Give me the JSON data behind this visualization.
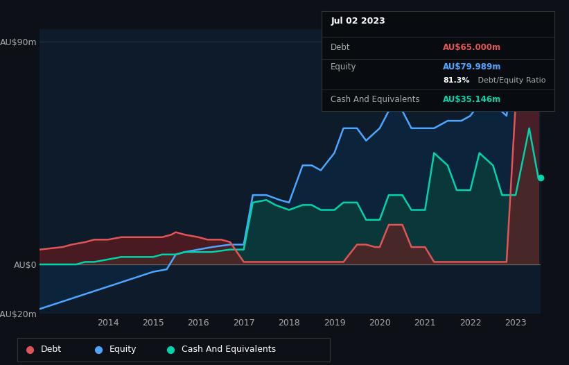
{
  "background_color": "#0d1117",
  "plot_bg_color": "#0d1b2a",
  "grid_color": "#2a3a4a",
  "ylabel_top": "AU$90m",
  "ylabel_zero": "AU$0",
  "ylabel_neg": "-AU$20m",
  "ylim": [
    -20,
    95
  ],
  "xtick_labels": [
    "2014",
    "2015",
    "2016",
    "2017",
    "2018",
    "2019",
    "2020",
    "2021",
    "2022",
    "2023"
  ],
  "debt_color": "#e05555",
  "equity_color": "#4da6ff",
  "cash_color": "#00d4aa",
  "debt_fill_color": "#7b1a1a",
  "equity_fill_color": "#0a2a4a",
  "cash_fill_color": "#0a4a3a",
  "legend_items": [
    "Debt",
    "Equity",
    "Cash And Equivalents"
  ],
  "legend_colors": [
    "#e05555",
    "#4da6ff",
    "#00d4aa"
  ],
  "tooltip_bg": "#0a0a0a",
  "tooltip_title": "Jul 02 2023",
  "tooltip_debt_label": "Debt",
  "tooltip_debt_value": "AU$65.000m",
  "tooltip_equity_label": "Equity",
  "tooltip_equity_value": "AU$79.989m",
  "tooltip_ratio_bold": "81.3%",
  "tooltip_ratio_normal": " Debt/Equity Ratio",
  "tooltip_cash_label": "Cash And Equivalents",
  "tooltip_cash_value": "AU$35.146m",
  "debt_x": [
    2012.5,
    2013.0,
    2013.2,
    2013.5,
    2013.7,
    2014.0,
    2014.3,
    2014.5,
    2014.7,
    2015.0,
    2015.2,
    2015.4,
    2015.5,
    2015.7,
    2016.0,
    2016.2,
    2016.5,
    2016.7,
    2017.0,
    2017.2,
    2017.5,
    2017.8,
    2018.0,
    2018.3,
    2018.5,
    2018.7,
    2019.0,
    2019.2,
    2019.5,
    2019.7,
    2019.9,
    2020.0,
    2020.2,
    2020.5,
    2020.7,
    2021.0,
    2021.2,
    2021.5,
    2021.8,
    2022.0,
    2022.2,
    2022.5,
    2022.8,
    2023.0,
    2023.3,
    2023.5
  ],
  "debt_y": [
    6,
    7,
    8,
    9,
    10,
    10,
    11,
    11,
    11,
    11,
    11,
    12,
    13,
    12,
    11,
    10,
    10,
    9,
    1,
    1,
    1,
    1,
    1,
    1,
    1,
    1,
    1,
    1,
    8,
    8,
    7,
    7,
    16,
    16,
    7,
    7,
    1,
    1,
    1,
    1,
    1,
    1,
    1,
    65,
    65,
    65
  ],
  "equity_x": [
    2012.5,
    2013.0,
    2013.5,
    2014.0,
    2014.5,
    2015.0,
    2015.3,
    2015.5,
    2015.7,
    2016.0,
    2016.3,
    2016.7,
    2017.0,
    2017.2,
    2017.5,
    2017.8,
    2018.0,
    2018.3,
    2018.5,
    2018.7,
    2019.0,
    2019.2,
    2019.5,
    2019.7,
    2020.0,
    2020.2,
    2020.5,
    2020.7,
    2021.0,
    2021.2,
    2021.5,
    2021.8,
    2022.0,
    2022.2,
    2022.5,
    2022.8,
    2023.0,
    2023.2,
    2023.5
  ],
  "equity_y": [
    -18,
    -15,
    -12,
    -9,
    -6,
    -3,
    -2,
    4,
    5,
    6,
    7,
    8,
    8,
    28,
    28,
    26,
    25,
    40,
    40,
    38,
    45,
    55,
    55,
    50,
    55,
    62,
    62,
    55,
    55,
    55,
    58,
    58,
    60,
    65,
    65,
    60,
    90,
    80,
    80
  ],
  "cash_x": [
    2012.5,
    2013.0,
    2013.3,
    2013.5,
    2013.7,
    2014.0,
    2014.3,
    2014.7,
    2015.0,
    2015.2,
    2015.5,
    2015.7,
    2016.0,
    2016.3,
    2016.7,
    2017.0,
    2017.2,
    2017.5,
    2017.7,
    2018.0,
    2018.3,
    2018.5,
    2018.7,
    2019.0,
    2019.2,
    2019.5,
    2019.7,
    2020.0,
    2020.2,
    2020.5,
    2020.7,
    2021.0,
    2021.2,
    2021.5,
    2021.7,
    2022.0,
    2022.2,
    2022.5,
    2022.7,
    2023.0,
    2023.3,
    2023.5
  ],
  "cash_y": [
    0,
    0,
    0,
    1,
    1,
    2,
    3,
    3,
    3,
    4,
    4,
    5,
    5,
    5,
    6,
    6,
    25,
    26,
    24,
    22,
    24,
    24,
    22,
    22,
    25,
    25,
    18,
    18,
    28,
    28,
    22,
    22,
    45,
    40,
    30,
    30,
    45,
    40,
    28,
    28,
    55,
    35
  ]
}
